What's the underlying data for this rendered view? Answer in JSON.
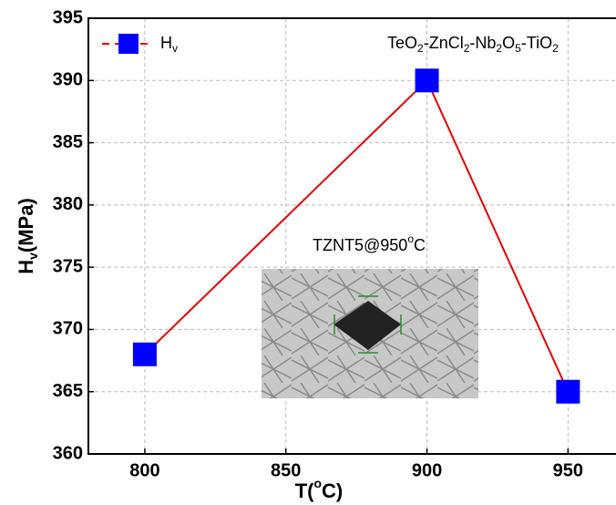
{
  "chart_data": {
    "type": "line",
    "y_label": [
      "H",
      "v",
      "(MPa)"
    ],
    "x_label": [
      "T(",
      "o",
      "C)"
    ],
    "annotation": [
      "TeO",
      "2",
      "-ZnCl",
      "2",
      "-Nb",
      "2",
      "O",
      "5",
      "-TiO",
      "2"
    ],
    "inset_label": [
      "TZNT5@950",
      "o",
      "C"
    ],
    "legend_label": [
      "H",
      "v"
    ],
    "x": [
      800,
      900,
      950
    ],
    "series": [
      {
        "color": "#e00000",
        "marker_color": "#0000ff",
        "values": [
          368,
          390,
          365
        ]
      }
    ],
    "xlim": [
      780,
      967
    ],
    "xticks": [
      800,
      850,
      900,
      950
    ],
    "ylim": [
      360,
      395
    ],
    "yticks": [
      360,
      365,
      370,
      375,
      380,
      385,
      390,
      395
    ],
    "grid": true
  }
}
